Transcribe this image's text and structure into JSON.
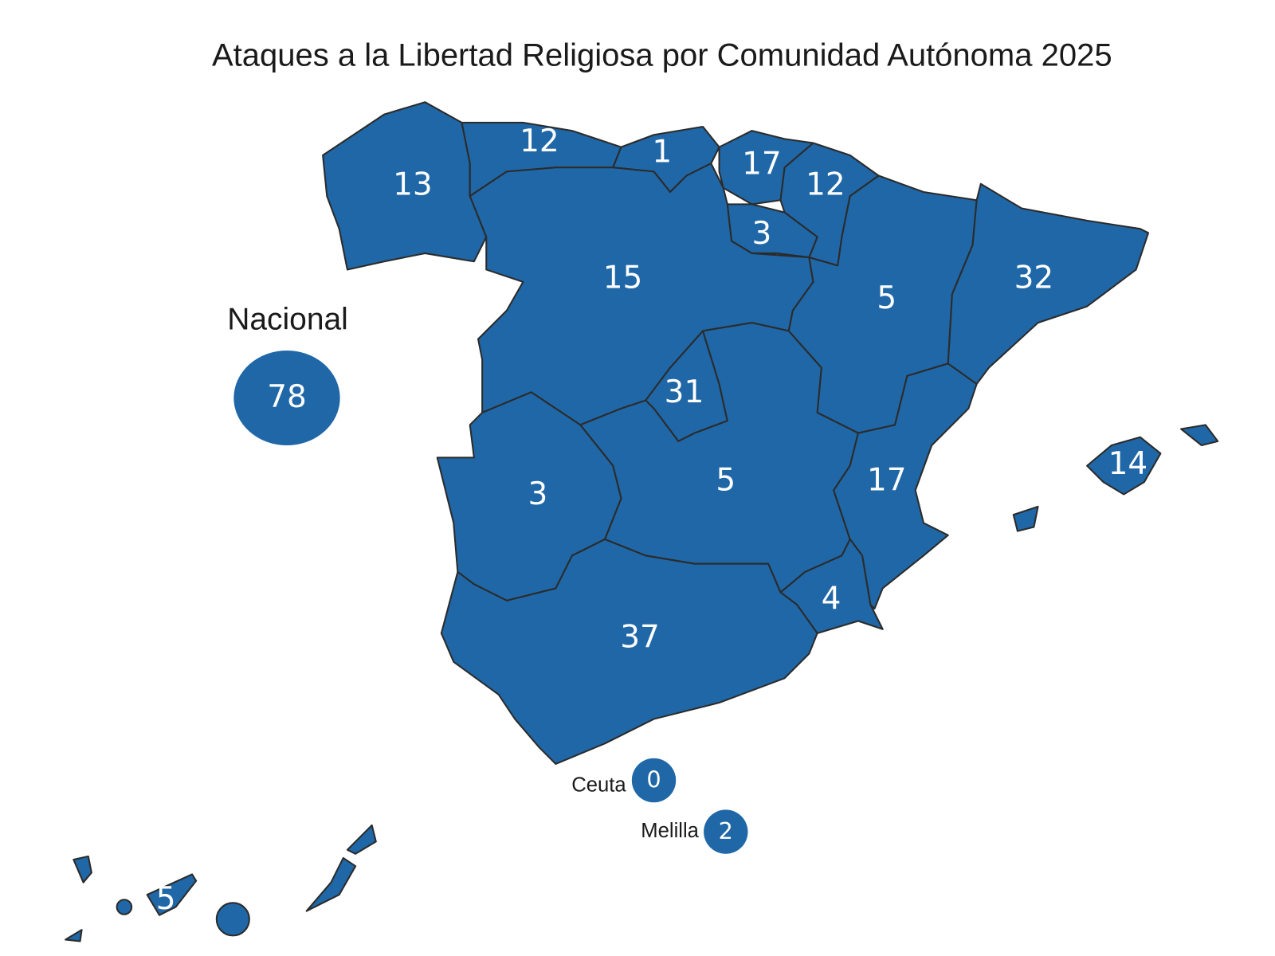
{
  "title": "Ataques a la Libertad Religiosa por Comunidad Autónoma 2025",
  "regions": [
    13,
    12,
    1,
    17,
    12,
    3,
    15,
    5,
    32,
    31,
    5,
    3,
    17,
    4,
    37,
    14,
    5
  ],
  "national": {
    "label": "Nacional",
    "value": 78
  },
  "ceuta": {
    "label": "Ceuta",
    "value": 0
  },
  "melilla": {
    "label": "Melilla",
    "value": 2
  }
}
